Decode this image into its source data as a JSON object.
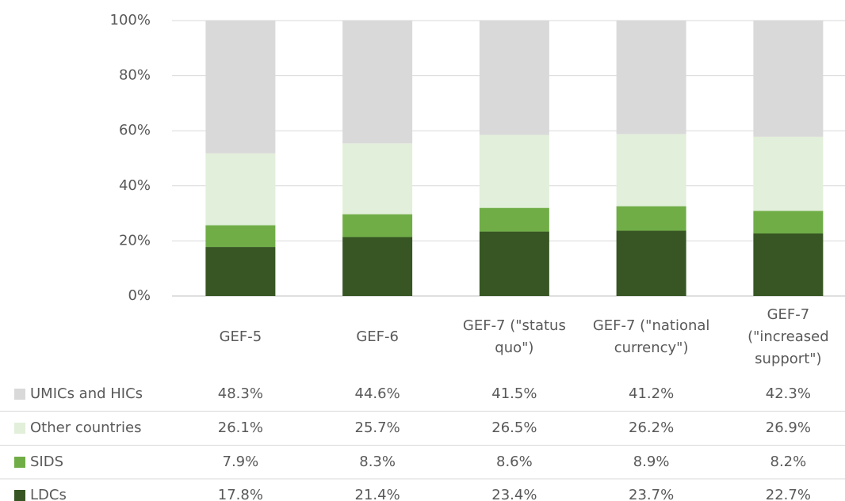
{
  "chart_data": {
    "type": "stacked_bar",
    "categories": [
      "GEF-5",
      "GEF-6",
      "GEF-7 (\"status quo\")",
      "GEF-7 (\"national currency\")",
      "GEF-7 (\"increased support\")"
    ],
    "series": [
      {
        "name": "LDCs",
        "color": "#375623",
        "values": [
          17.8,
          21.4,
          23.4,
          23.7,
          22.7
        ],
        "value_labels": [
          "17.8%",
          "21.4%",
          "23.4%",
          "23.7%",
          "22.7%"
        ]
      },
      {
        "name": "SIDS",
        "color": "#70ad47",
        "values": [
          7.9,
          8.3,
          8.6,
          8.9,
          8.2
        ],
        "value_labels": [
          "7.9%",
          "8.3%",
          "8.6%",
          "8.9%",
          "8.2%"
        ]
      },
      {
        "name": "Other countries",
        "color": "#e2efda",
        "values": [
          26.1,
          25.7,
          26.5,
          26.2,
          26.9
        ],
        "value_labels": [
          "26.1%",
          "25.7%",
          "26.5%",
          "26.2%",
          "26.9%"
        ]
      },
      {
        "name": "UMICs and HICs",
        "color": "#d9d9d9",
        "values": [
          48.3,
          44.6,
          41.5,
          41.2,
          42.3
        ],
        "value_labels": [
          "48.3%",
          "44.6%",
          "41.5%",
          "41.2%",
          "42.3%"
        ]
      }
    ],
    "ylim": [
      0,
      100
    ],
    "yticks": [
      {
        "value": 0,
        "label": "0%"
      },
      {
        "value": 20,
        "label": "20%"
      },
      {
        "value": 40,
        "label": "40%"
      },
      {
        "value": 60,
        "label": "60%"
      },
      {
        "value": 80,
        "label": "80%"
      },
      {
        "value": 100,
        "label": "100%"
      }
    ],
    "grid": true
  }
}
